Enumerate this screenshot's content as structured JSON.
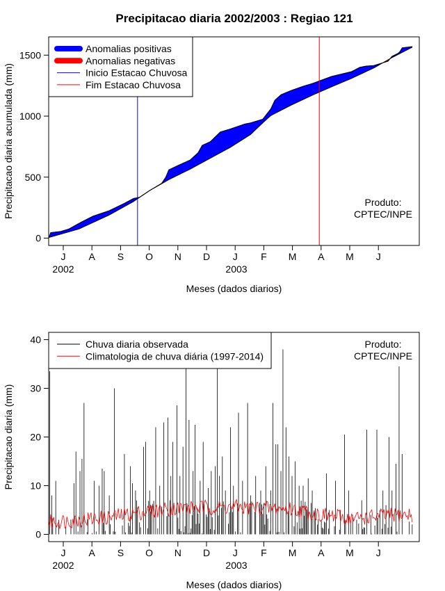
{
  "figure_title": "Precipitacao diaria 2002/2003 : Regiao 121",
  "chart_data": [
    {
      "type": "area",
      "title": "Precipitacao diaria 2002/2003 : Regiao 121",
      "xlabel": "Meses (dados diarios)",
      "ylabel": "Precipitacao diaria acumulada (mm)",
      "month_ticks": [
        "J",
        "A",
        "S",
        "O",
        "N",
        "D",
        "J",
        "F",
        "M",
        "A",
        "M",
        "J"
      ],
      "year_labels": [
        "2002",
        "2003"
      ],
      "yticks": [
        0,
        500,
        1000,
        1500
      ],
      "xlim": [
        0,
        367
      ],
      "ylim": [
        -60,
        1650
      ],
      "rainy_season_start_day": 88,
      "rainy_season_end_day": 268,
      "legend": [
        {
          "label": "Anomalias positivas",
          "color": "#0000ff",
          "style": "thick"
        },
        {
          "label": "Anomalias negativas",
          "color": "#ff0000",
          "style": "thick"
        },
        {
          "label": "Inicio Estacao Chuvosa",
          "color": "#0000ff",
          "style": "thin"
        },
        {
          "label": "Fim Estacao Chuvosa",
          "color": "#ff0000",
          "style": "thin"
        }
      ],
      "product_label": [
        "Produto:",
        "CPTEC/INPE"
      ],
      "observed_cumulative": [
        {
          "day": 0,
          "mm": 0
        },
        {
          "day": 2,
          "mm": 45
        },
        {
          "day": 12,
          "mm": 55
        },
        {
          "day": 20,
          "mm": 75
        },
        {
          "day": 32,
          "mm": 130
        },
        {
          "day": 44,
          "mm": 180
        },
        {
          "day": 60,
          "mm": 225
        },
        {
          "day": 75,
          "mm": 285
        },
        {
          "day": 84,
          "mm": 325
        },
        {
          "day": 90,
          "mm": 335
        },
        {
          "day": 100,
          "mm": 390
        },
        {
          "day": 112,
          "mm": 450
        },
        {
          "day": 116,
          "mm": 500
        },
        {
          "day": 119,
          "mm": 560
        },
        {
          "day": 128,
          "mm": 595
        },
        {
          "day": 140,
          "mm": 640
        },
        {
          "day": 148,
          "mm": 700
        },
        {
          "day": 152,
          "mm": 760
        },
        {
          "day": 160,
          "mm": 790
        },
        {
          "day": 170,
          "mm": 870
        },
        {
          "day": 180,
          "mm": 895
        },
        {
          "day": 194,
          "mm": 935
        },
        {
          "day": 200,
          "mm": 945
        },
        {
          "day": 212,
          "mm": 975
        },
        {
          "day": 220,
          "mm": 1060
        },
        {
          "day": 224,
          "mm": 1130
        },
        {
          "day": 230,
          "mm": 1175
        },
        {
          "day": 240,
          "mm": 1210
        },
        {
          "day": 252,
          "mm": 1245
        },
        {
          "day": 262,
          "mm": 1270
        },
        {
          "day": 270,
          "mm": 1295
        },
        {
          "day": 280,
          "mm": 1325
        },
        {
          "day": 290,
          "mm": 1345
        },
        {
          "day": 300,
          "mm": 1365
        },
        {
          "day": 308,
          "mm": 1400
        },
        {
          "day": 314,
          "mm": 1410
        },
        {
          "day": 322,
          "mm": 1415
        },
        {
          "day": 336,
          "mm": 1450
        },
        {
          "day": 340,
          "mm": 1490
        },
        {
          "day": 346,
          "mm": 1515
        },
        {
          "day": 348,
          "mm": 1530
        },
        {
          "day": 350,
          "mm": 1560
        },
        {
          "day": 360,
          "mm": 1570
        }
      ],
      "climatology_cumulative": [
        {
          "day": 0,
          "mm": 5
        },
        {
          "day": 30,
          "mm": 75
        },
        {
          "day": 60,
          "mm": 190
        },
        {
          "day": 84,
          "mm": 300
        },
        {
          "day": 100,
          "mm": 390
        },
        {
          "day": 119,
          "mm": 480
        },
        {
          "day": 140,
          "mm": 565
        },
        {
          "day": 160,
          "mm": 655
        },
        {
          "day": 180,
          "mm": 745
        },
        {
          "day": 200,
          "mm": 850
        },
        {
          "day": 212,
          "mm": 945
        },
        {
          "day": 220,
          "mm": 1005
        },
        {
          "day": 240,
          "mm": 1090
        },
        {
          "day": 262,
          "mm": 1175
        },
        {
          "day": 280,
          "mm": 1240
        },
        {
          "day": 300,
          "mm": 1310
        },
        {
          "day": 322,
          "mm": 1395
        },
        {
          "day": 340,
          "mm": 1480
        },
        {
          "day": 360,
          "mm": 1565
        }
      ]
    },
    {
      "type": "bar",
      "xlabel": "Meses (dados diarios)",
      "ylabel": "Precipitacao diaria (mm)",
      "month_ticks": [
        "J",
        "A",
        "S",
        "O",
        "N",
        "D",
        "J",
        "F",
        "M",
        "A",
        "M",
        "J"
      ],
      "year_labels": [
        "2002",
        "2003"
      ],
      "yticks": [
        0,
        10,
        20,
        30,
        40
      ],
      "xlim": [
        0,
        367
      ],
      "ylim": [
        -1.5,
        41.5
      ],
      "legend": [
        {
          "label": "Chuva diaria observada",
          "color": "#000000"
        },
        {
          "label": "Climatologia de chuva diária (1997-2014)",
          "color": "#ff0000"
        }
      ],
      "product_label": [
        "Produto:",
        "CPTEC/INPE"
      ],
      "observed_daily_peaks": [
        {
          "day": 1,
          "mm": 33.5
        },
        {
          "day": 3,
          "mm": 8
        },
        {
          "day": 7,
          "mm": 11
        },
        {
          "day": 25,
          "mm": 10.5
        },
        {
          "day": 27,
          "mm": 17
        },
        {
          "day": 31,
          "mm": 13
        },
        {
          "day": 33,
          "mm": 15.5
        },
        {
          "day": 35,
          "mm": 27
        },
        {
          "day": 45,
          "mm": 11
        },
        {
          "day": 50,
          "mm": 10
        },
        {
          "day": 53,
          "mm": 13.5
        },
        {
          "day": 55,
          "mm": 13
        },
        {
          "day": 60,
          "mm": 8
        },
        {
          "day": 65,
          "mm": 30
        },
        {
          "day": 75,
          "mm": 16.5
        },
        {
          "day": 81,
          "mm": 14
        },
        {
          "day": 83,
          "mm": 10.5
        },
        {
          "day": 86,
          "mm": 9
        },
        {
          "day": 94,
          "mm": 18
        },
        {
          "day": 96,
          "mm": 19
        },
        {
          "day": 100,
          "mm": 9
        },
        {
          "day": 106,
          "mm": 22
        },
        {
          "day": 110,
          "mm": 10
        },
        {
          "day": 114,
          "mm": 23
        },
        {
          "day": 118,
          "mm": 24
        },
        {
          "day": 121,
          "mm": 12
        },
        {
          "day": 123,
          "mm": 19
        },
        {
          "day": 127,
          "mm": 26.5
        },
        {
          "day": 130,
          "mm": 12
        },
        {
          "day": 133,
          "mm": 18
        },
        {
          "day": 136,
          "mm": 35
        },
        {
          "day": 139,
          "mm": 23.5
        },
        {
          "day": 143,
          "mm": 13
        },
        {
          "day": 145,
          "mm": 22.5
        },
        {
          "day": 150,
          "mm": 11
        },
        {
          "day": 153,
          "mm": 19
        },
        {
          "day": 158,
          "mm": 9.5
        },
        {
          "day": 161,
          "mm": 13
        },
        {
          "day": 165,
          "mm": 14
        },
        {
          "day": 167,
          "mm": 35
        },
        {
          "day": 169,
          "mm": 12
        },
        {
          "day": 172,
          "mm": 16
        },
        {
          "day": 175,
          "mm": 9
        },
        {
          "day": 180,
          "mm": 22
        },
        {
          "day": 183,
          "mm": 10
        },
        {
          "day": 188,
          "mm": 25
        },
        {
          "day": 192,
          "mm": 11
        },
        {
          "day": 197,
          "mm": 27
        },
        {
          "day": 200,
          "mm": 8
        },
        {
          "day": 205,
          "mm": 12
        },
        {
          "day": 210,
          "mm": 9
        },
        {
          "day": 215,
          "mm": 14
        },
        {
          "day": 220,
          "mm": 9
        },
        {
          "day": 222,
          "mm": 27
        },
        {
          "day": 225,
          "mm": 18.5
        },
        {
          "day": 227,
          "mm": 18.5
        },
        {
          "day": 230,
          "mm": 13
        },
        {
          "day": 232,
          "mm": 38
        },
        {
          "day": 235,
          "mm": 22
        },
        {
          "day": 238,
          "mm": 16
        },
        {
          "day": 241,
          "mm": 12
        },
        {
          "day": 244,
          "mm": 15
        },
        {
          "day": 248,
          "mm": 10
        },
        {
          "day": 252,
          "mm": 10
        },
        {
          "day": 257,
          "mm": 11.5
        },
        {
          "day": 261,
          "mm": 9
        },
        {
          "day": 266,
          "mm": 2
        },
        {
          "day": 270,
          "mm": 3
        },
        {
          "day": 275,
          "mm": 12.5
        },
        {
          "day": 278,
          "mm": 5
        },
        {
          "day": 284,
          "mm": 11
        },
        {
          "day": 289,
          "mm": 5
        },
        {
          "day": 293,
          "mm": 20.5
        },
        {
          "day": 297,
          "mm": 9
        },
        {
          "day": 301,
          "mm": 4
        },
        {
          "day": 305,
          "mm": 3
        },
        {
          "day": 310,
          "mm": 7
        },
        {
          "day": 315,
          "mm": 21.5
        },
        {
          "day": 319,
          "mm": 4
        },
        {
          "day": 325,
          "mm": 21.5
        },
        {
          "day": 328,
          "mm": 5
        },
        {
          "day": 331,
          "mm": 9
        },
        {
          "day": 334,
          "mm": 6
        },
        {
          "day": 337,
          "mm": 20
        },
        {
          "day": 340,
          "mm": 9
        },
        {
          "day": 344,
          "mm": 14.5
        },
        {
          "day": 347,
          "mm": 34.5
        },
        {
          "day": 350,
          "mm": 16.5
        }
      ],
      "climatology_daily": [
        {
          "day": 0,
          "mm": 2.5
        },
        {
          "day": 30,
          "mm": 3
        },
        {
          "day": 60,
          "mm": 3.5
        },
        {
          "day": 90,
          "mm": 4.5
        },
        {
          "day": 120,
          "mm": 5.3
        },
        {
          "day": 150,
          "mm": 5.5
        },
        {
          "day": 180,
          "mm": 5.6
        },
        {
          "day": 210,
          "mm": 5.4
        },
        {
          "day": 240,
          "mm": 5.2
        },
        {
          "day": 270,
          "mm": 4
        },
        {
          "day": 300,
          "mm": 3.2
        },
        {
          "day": 330,
          "mm": 3.8
        },
        {
          "day": 360,
          "mm": 4
        }
      ]
    }
  ]
}
